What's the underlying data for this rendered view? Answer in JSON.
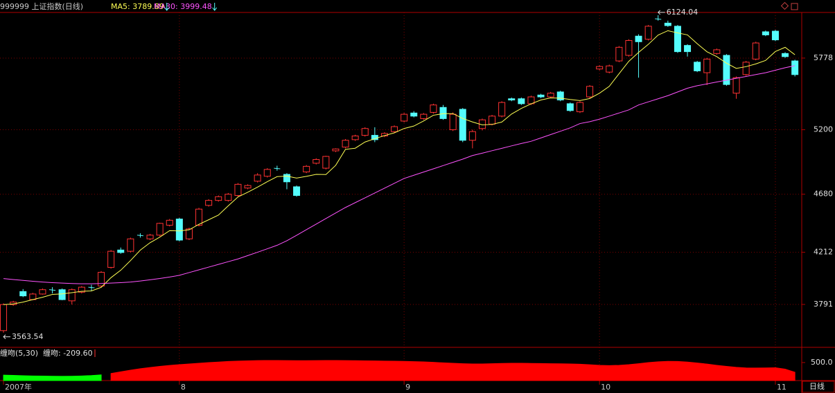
{
  "chart_data": [
    {
      "type": "candlestick",
      "title": "999999 上证指数(日线)",
      "legend": [
        {
          "label": "MA5: 3789.89",
          "color": "#ffff54"
        },
        {
          "label": "MA30: 3999.48",
          "color": "#ff54ff"
        }
      ],
      "open": [
        3580,
        3790,
        3895,
        3830,
        3875,
        3910,
        3910,
        3820,
        3890,
        3930,
        3940,
        4090,
        4230,
        4220,
        4350,
        4320,
        4350,
        4430,
        4480,
        4320,
        4430,
        4590,
        4630,
        4630,
        4670,
        4730,
        4785,
        4825,
        4890,
        4840,
        4740,
        4860,
        4930,
        4890,
        5030,
        5060,
        5120,
        5155,
        5155,
        5150,
        5185,
        5270,
        5335,
        5290,
        5340,
        5380,
        5200,
        5365,
        5115,
        5210,
        5245,
        5310,
        5450,
        5450,
        5410,
        5480,
        5465,
        5505,
        5410,
        5345,
        5465,
        5690,
        5665,
        5755,
        5800,
        5955,
        5930,
        6095,
        6060,
        6035,
        5880,
        5745,
        5660,
        5815,
        5800,
        5495,
        5645,
        5770,
        5990,
        5995,
        5815,
        5755
      ],
      "high": [
        3800,
        3820,
        3915,
        3885,
        3920,
        3930,
        3920,
        3920,
        3940,
        3950,
        4060,
        4230,
        4250,
        4330,
        4365,
        4360,
        4450,
        4480,
        4490,
        4410,
        4570,
        4640,
        4670,
        4690,
        4770,
        4760,
        4850,
        4890,
        4910,
        4850,
        4750,
        4915,
        4970,
        4990,
        5050,
        5125,
        5160,
        5220,
        5220,
        5180,
        5235,
        5335,
        5350,
        5335,
        5410,
        5400,
        5340,
        5375,
        5200,
        5290,
        5320,
        5430,
        5460,
        5460,
        5475,
        5490,
        5505,
        5515,
        5420,
        5430,
        5560,
        5720,
        5725,
        5875,
        5930,
        5970,
        6045,
        6124.04,
        6080,
        6045,
        5890,
        5755,
        5780,
        5855,
        5810,
        5630,
        5755,
        5910,
        6000,
        6005,
        5825,
        5765
      ],
      "low": [
        3563.54,
        3780,
        3850,
        3825,
        3870,
        3880,
        3825,
        3790,
        3880,
        3900,
        3930,
        4080,
        4200,
        4210,
        4330,
        4310,
        4340,
        4420,
        4300,
        4310,
        4420,
        4580,
        4620,
        4620,
        4660,
        4720,
        4775,
        4815,
        4870,
        4720,
        4660,
        4850,
        4920,
        4880,
        5020,
        5050,
        5110,
        5145,
        5100,
        5140,
        5175,
        5260,
        5300,
        5280,
        5330,
        5280,
        5190,
        5100,
        5050,
        5195,
        5235,
        5300,
        5430,
        5400,
        5400,
        5455,
        5455,
        5430,
        5345,
        5335,
        5455,
        5680,
        5655,
        5745,
        5790,
        5620,
        5920,
        6080,
        6030,
        5820,
        5790,
        5665,
        5560,
        5805,
        5555,
        5450,
        5635,
        5760,
        5955,
        5915,
        5780,
        5630
      ],
      "close": [
        3790,
        3810,
        3860,
        3875,
        3910,
        3905,
        3830,
        3910,
        3930,
        3925,
        4050,
        4220,
        4210,
        4320,
        4345,
        4350,
        4445,
        4470,
        4310,
        4400,
        4560,
        4630,
        4660,
        4680,
        4760,
        4750,
        4835,
        4880,
        4885,
        4780,
        4670,
        4905,
        4960,
        4985,
        5045,
        5115,
        5150,
        5210,
        5120,
        5170,
        5225,
        5325,
        5310,
        5325,
        5400,
        5290,
        5325,
        5115,
        5185,
        5280,
        5310,
        5420,
        5440,
        5410,
        5465,
        5465,
        5495,
        5440,
        5355,
        5420,
        5550,
        5710,
        5715,
        5865,
        5920,
        5910,
        6035,
        6090,
        6040,
        5830,
        5830,
        5675,
        5770,
        5845,
        5565,
        5620,
        5745,
        5900,
        5965,
        5925,
        5790,
        5645
      ],
      "up_color": "#ff3232",
      "down_color": "#54fcfc",
      "lines": [
        {
          "color": "#ffff54",
          "values": [
            3789.89,
            3795,
            3810,
            3830,
            3849,
            3872,
            3876,
            3886,
            3897,
            3900,
            3929,
            4007,
            4067,
            4145,
            4229,
            4289,
            4334,
            4386,
            4384,
            4393,
            4437,
            4474,
            4512,
            4586,
            4658,
            4696,
            4737,
            4781,
            4822,
            4826,
            4810,
            4824,
            4840,
            4839,
            4913,
            5042,
            5051,
            5101,
            5128,
            5153,
            5175,
            5210,
            5230,
            5271,
            5317,
            5330,
            5330,
            5291,
            5263,
            5239,
            5243,
            5262,
            5327,
            5372,
            5409,
            5440,
            5457,
            5455,
            5444,
            5435,
            5452,
            5495,
            5550,
            5652,
            5752,
            5824,
            5889,
            5964,
            5999,
            5981,
            5965,
            5894,
            5829,
            5790,
            5737,
            5695,
            5709,
            5731,
            5759,
            5831,
            5865,
            5805
          ]
        },
        {
          "color": "#ff54ff",
          "values": [
            3999.48,
            3992,
            3985,
            3978,
            3972,
            3967,
            3963,
            3960,
            3958,
            3958,
            3960,
            3963,
            3967,
            3972,
            3980,
            3990,
            4000,
            4012,
            4026,
            4048,
            4070,
            4092,
            4114,
            4136,
            4158,
            4185,
            4212,
            4240,
            4268,
            4305,
            4349,
            4394,
            4439,
            4484,
            4529,
            4573,
            4612,
            4651,
            4690,
            4729,
            4768,
            4807,
            4833,
            4859,
            4885,
            4911,
            4937,
            4963,
            4992,
            5011,
            5031,
            5050,
            5070,
            5089,
            5107,
            5134,
            5161,
            5188,
            5215,
            5250,
            5265,
            5285,
            5310,
            5335,
            5360,
            5400,
            5425,
            5450,
            5475,
            5505,
            5535,
            5555,
            5570,
            5585,
            5600,
            5615,
            5630,
            5645,
            5660,
            5680,
            5700,
            5717
          ]
        }
      ],
      "ylim": [
        3512,
        6146
      ],
      "yticks": [
        3791,
        4212,
        4680,
        5200,
        5778
      ],
      "xticks": [
        {
          "value": 0,
          "label": "2007年"
        },
        {
          "value": 18,
          "label": "8"
        },
        {
          "value": 41,
          "label": "9"
        },
        {
          "value": 61,
          "label": "10"
        },
        {
          "value": 79,
          "label": "11"
        }
      ],
      "annotations": [
        {
          "value": 6124.04,
          "label": "6124.04"
        },
        {
          "value": 3563.54,
          "label": "3563.54"
        }
      ],
      "period_label": "日线",
      "grid": true
    },
    {
      "type": "area",
      "title": "缠吻(5,30)",
      "value_label": "缠吻: -209.60",
      "series": [
        {
          "name": "缠吻",
          "color": "#ff0000",
          "values": [
            null,
            null,
            null,
            null,
            null,
            null,
            null,
            null,
            null,
            null,
            null,
            -300,
            -180,
            -60,
            50,
            140,
            220,
            290,
            350,
            400,
            450,
            500,
            540,
            580,
            610,
            630,
            645,
            652,
            650,
            645,
            640,
            640,
            645,
            650,
            650,
            645,
            640,
            630,
            620,
            610,
            600,
            590,
            570,
            550,
            520,
            480,
            450,
            420,
            400,
            400,
            420,
            440,
            450,
            450,
            440,
            430,
            420,
            410,
            400,
            380,
            340,
            300,
            280,
            300,
            350,
            420,
            500,
            560,
            590,
            580,
            540,
            470,
            390,
            300,
            220,
            150,
            110,
            100,
            110,
            120,
            20,
            -209.6
          ]
        },
        {
          "color": "#00ff00",
          "values": [
            -420,
            -440,
            -460,
            -480,
            -490,
            -500,
            -510,
            -500,
            -480,
            -450,
            -400,
            null,
            null,
            null,
            null,
            null,
            null,
            null,
            null,
            null,
            null,
            null,
            null,
            null,
            null,
            null,
            null,
            null,
            null,
            null,
            null,
            null,
            null,
            null,
            null,
            null,
            null,
            null,
            null,
            null,
            null,
            null,
            null,
            null,
            null,
            null,
            null,
            null,
            null,
            null,
            null,
            null,
            null,
            null,
            null,
            null,
            null,
            null,
            null,
            null,
            null,
            null,
            null,
            null,
            null,
            null,
            null,
            null,
            null,
            null,
            null,
            null,
            null,
            null,
            null,
            null,
            null,
            null,
            null,
            null,
            null,
            null
          ]
        }
      ],
      "ylim": [
        -818,
        1565
      ],
      "yticks": [
        {
          "value": 500,
          "label": "500.0"
        }
      ]
    }
  ]
}
